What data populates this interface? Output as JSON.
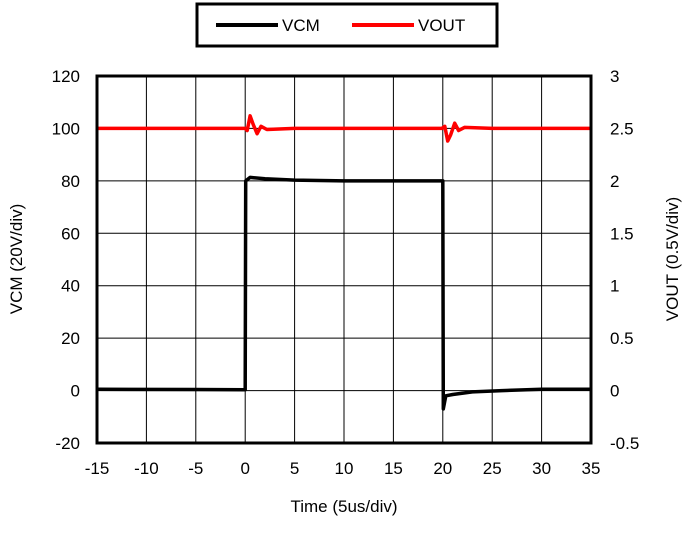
{
  "chart_data": {
    "type": "line",
    "title": "",
    "xlabel": "Time (5us/div)",
    "ylabel": "VCM (20V/div)",
    "y2label": "VOUT (0.5V/div)",
    "xlim": [
      -15,
      35
    ],
    "ylim": [
      -20,
      120
    ],
    "y2lim": [
      -0.5,
      3
    ],
    "x_ticks": [
      "-15",
      "-10",
      "-5",
      "0",
      "5",
      "10",
      "15",
      "20",
      "25",
      "30",
      "35"
    ],
    "y_ticks": [
      "-20",
      "0",
      "20",
      "40",
      "60",
      "80",
      "100",
      "120"
    ],
    "y2_ticks": [
      "-0.5",
      "0",
      "0.5",
      "1",
      "1.5",
      "2",
      "2.5",
      "3"
    ],
    "grid": true,
    "legend_position": "top-center",
    "series": [
      {
        "name": "VCM",
        "axis": "left",
        "color": "#000000",
        "x": [
          -15,
          -5,
          0,
          0.05,
          0.5,
          2,
          5,
          10,
          15,
          19.95,
          20,
          20.05,
          20.3,
          21,
          23,
          26,
          30,
          35
        ],
        "y": [
          0.5,
          0.4,
          0.3,
          80,
          81.3,
          80.8,
          80.3,
          80,
          80,
          80,
          80,
          -7,
          -2,
          -1.5,
          -0.5,
          0,
          0.5,
          0.5
        ]
      },
      {
        "name": "VOUT",
        "axis": "right",
        "color": "#ff0000",
        "x": [
          -15,
          -5,
          0,
          0.2,
          0.5,
          0.8,
          1.2,
          1.6,
          2.2,
          5,
          10,
          15,
          19.9,
          20.2,
          20.5,
          20.8,
          21.2,
          21.6,
          22.2,
          25,
          30,
          35
        ],
        "y": [
          2.5,
          2.5,
          2.5,
          2.48,
          2.62,
          2.54,
          2.45,
          2.52,
          2.49,
          2.5,
          2.5,
          2.5,
          2.5,
          2.52,
          2.38,
          2.44,
          2.55,
          2.48,
          2.51,
          2.5,
          2.5,
          2.5
        ]
      }
    ]
  }
}
